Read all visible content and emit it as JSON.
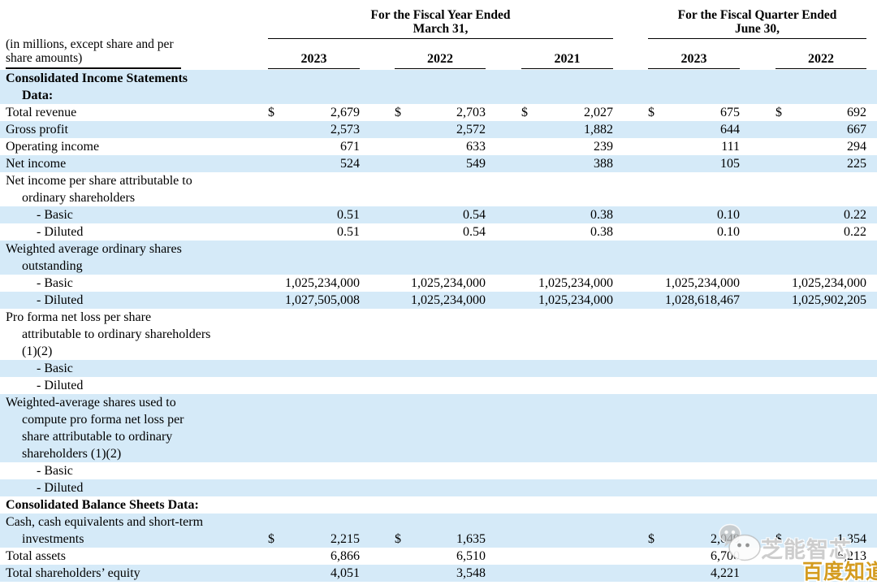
{
  "meta_label_lines": [
    "(in millions, except share and per",
    "share amounts)"
  ],
  "column_groups": [
    {
      "title": "For the Fiscal Year Ended",
      "subtitle": "March 31,",
      "years": [
        "2023",
        "2022",
        "2021"
      ]
    },
    {
      "title": "For the Fiscal Quarter Ended",
      "subtitle": "June 30,",
      "years": [
        "2023",
        "2022"
      ]
    }
  ],
  "rows": [
    {
      "lines": [
        [
          "Consolidated Income Statements",
          0
        ],
        [
          "Data:",
          1
        ]
      ],
      "bold": true,
      "shaded": true,
      "values": [
        "",
        "",
        "",
        "",
        ""
      ]
    },
    {
      "lines": [
        [
          "Total revenue",
          0
        ]
      ],
      "bold": false,
      "shaded": false,
      "dollars": [
        true,
        true,
        true,
        true,
        true
      ],
      "values": [
        "2,679",
        "2,703",
        "2,027",
        "675",
        "692"
      ]
    },
    {
      "lines": [
        [
          "Gross profit",
          0
        ]
      ],
      "bold": false,
      "shaded": true,
      "values": [
        "2,573",
        "2,572",
        "1,882",
        "644",
        "667"
      ]
    },
    {
      "lines": [
        [
          "Operating income",
          0
        ]
      ],
      "bold": false,
      "shaded": false,
      "values": [
        "671",
        "633",
        "239",
        "111",
        "294"
      ]
    },
    {
      "lines": [
        [
          "Net income",
          0
        ]
      ],
      "bold": false,
      "shaded": true,
      "values": [
        "524",
        "549",
        "388",
        "105",
        "225"
      ]
    },
    {
      "lines": [
        [
          "Net income per share attributable to",
          0
        ],
        [
          "ordinary shareholders",
          1
        ]
      ],
      "bold": false,
      "shaded": false,
      "values": [
        "",
        "",
        "",
        "",
        ""
      ]
    },
    {
      "lines": [
        [
          "- Basic",
          2
        ]
      ],
      "bold": false,
      "shaded": true,
      "values": [
        "0.51",
        "0.54",
        "0.38",
        "0.10",
        "0.22"
      ]
    },
    {
      "lines": [
        [
          "- Diluted",
          2
        ]
      ],
      "bold": false,
      "shaded": false,
      "values": [
        "0.51",
        "0.54",
        "0.38",
        "0.10",
        "0.22"
      ]
    },
    {
      "lines": [
        [
          "Weighted average ordinary shares",
          0
        ],
        [
          "outstanding",
          1
        ]
      ],
      "bold": false,
      "shaded": true,
      "values": [
        "",
        "",
        "",
        "",
        ""
      ]
    },
    {
      "lines": [
        [
          "- Basic",
          2
        ]
      ],
      "bold": false,
      "shaded": false,
      "values": [
        "1,025,234,000",
        "1,025,234,000",
        "1,025,234,000",
        "1,025,234,000",
        "1,025,234,000"
      ]
    },
    {
      "lines": [
        [
          "- Diluted",
          2
        ]
      ],
      "bold": false,
      "shaded": true,
      "values": [
        "1,027,505,008",
        "1,025,234,000",
        "1,025,234,000",
        "1,028,618,467",
        "1,025,902,205"
      ]
    },
    {
      "lines": [
        [
          "Pro forma net loss per share",
          0
        ],
        [
          "attributable to ordinary shareholders",
          1
        ],
        [
          "(1)(2)",
          1
        ]
      ],
      "bold": false,
      "shaded": false,
      "values": [
        "",
        "",
        "",
        "",
        ""
      ]
    },
    {
      "lines": [
        [
          "- Basic",
          2
        ]
      ],
      "bold": false,
      "shaded": true,
      "values": [
        "",
        "",
        "",
        "",
        ""
      ]
    },
    {
      "lines": [
        [
          "- Diluted",
          2
        ]
      ],
      "bold": false,
      "shaded": false,
      "values": [
        "",
        "",
        "",
        "",
        ""
      ]
    },
    {
      "lines": [
        [
          "Weighted-average shares used to",
          0
        ],
        [
          "compute pro forma net loss per",
          1
        ],
        [
          "share attributable to ordinary",
          1
        ],
        [
          "shareholders (1)(2)",
          1
        ]
      ],
      "bold": false,
      "shaded": true,
      "values": [
        "",
        "",
        "",
        "",
        ""
      ]
    },
    {
      "lines": [
        [
          "- Basic",
          2
        ]
      ],
      "bold": false,
      "shaded": false,
      "values": [
        "",
        "",
        "",
        "",
        ""
      ]
    },
    {
      "lines": [
        [
          "- Diluted",
          2
        ]
      ],
      "bold": false,
      "shaded": true,
      "values": [
        "",
        "",
        "",
        "",
        ""
      ]
    },
    {
      "lines": [
        [
          "Consolidated Balance Sheets Data:",
          0
        ]
      ],
      "bold": true,
      "shaded": false,
      "values": [
        "",
        "",
        "",
        "",
        ""
      ]
    },
    {
      "lines": [
        [
          "Cash, cash equivalents and short-term",
          0
        ],
        [
          "investments",
          1
        ]
      ],
      "bold": false,
      "shaded": true,
      "dollars": [
        true,
        true,
        false,
        true,
        true
      ],
      "values": [
        "2,215",
        "1,635",
        "",
        "2,049",
        "1,354"
      ]
    },
    {
      "lines": [
        [
          "Total assets",
          0
        ]
      ],
      "bold": false,
      "shaded": false,
      "values": [
        "6,866",
        "6,510",
        "",
        "6,700",
        "6,213"
      ]
    },
    {
      "lines": [
        [
          "Total shareholders’ equity",
          0
        ]
      ],
      "bold": false,
      "shaded": true,
      "values": [
        "4,051",
        "3,548",
        "",
        "4,221",
        ""
      ]
    }
  ],
  "watermarks": {
    "chat_text": "芝能智芯",
    "baidu_text": "百度知道"
  },
  "colors": {
    "stripe": "#d5eaf8",
    "watermark_gold": "#d49c20",
    "text": "#000000"
  }
}
